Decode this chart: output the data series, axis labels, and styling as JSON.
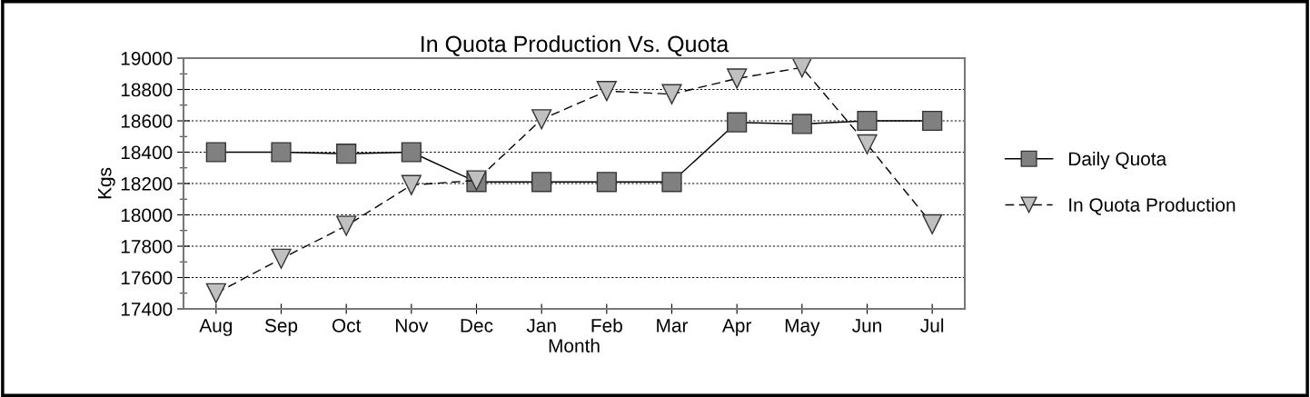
{
  "chart_data": {
    "type": "line",
    "title": "In Quota Production Vs. Quota",
    "xlabel": "Month",
    "ylabel": "Kgs",
    "categories": [
      "Aug",
      "Sep",
      "Oct",
      "Nov",
      "Dec",
      "Jan",
      "Feb",
      "Mar",
      "Apr",
      "May",
      "Jun",
      "Jul"
    ],
    "series": [
      {
        "name": "Daily Quota",
        "color": "#808080",
        "marker": "square",
        "line_style": "solid",
        "values": [
          18400,
          18400,
          18390,
          18400,
          18210,
          18210,
          18210,
          18210,
          18590,
          18580,
          18600,
          18600
        ]
      },
      {
        "name": "In Quota Production",
        "color": "#c0c0c0",
        "marker": "triangle",
        "line_style": "dashed",
        "values": [
          17500,
          17720,
          17930,
          18190,
          18220,
          18610,
          18790,
          18770,
          18870,
          18940,
          18450,
          17940
        ]
      }
    ],
    "ylim": [
      17400,
      19000
    ],
    "yticks": [
      17400,
      17600,
      17800,
      18000,
      18200,
      18400,
      18600,
      18800,
      19000
    ],
    "grid": "y",
    "legend": "right"
  }
}
